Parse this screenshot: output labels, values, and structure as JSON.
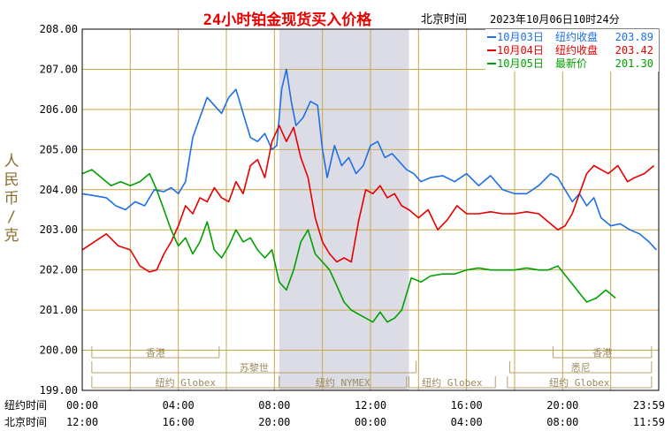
{
  "header": {
    "title": "24小时铂金现货买入价格",
    "timezone_label": "北京时间",
    "timestamp": "2023年10月06日10时24分"
  },
  "legend": [
    {
      "label": "10月03日",
      "sublabel": "纽约收盘",
      "value": "203.89",
      "color": "#1e6fe6"
    },
    {
      "label": "10月04日",
      "sublabel": "纽约收盘",
      "value": "203.42",
      "color": "#e60000"
    },
    {
      "label": "10月05日",
      "sublabel": "最新价",
      "value": "201.30",
      "color": "#00a000"
    }
  ],
  "axes": {
    "ylabel": "人民币/克",
    "row1_label": "纽约时间",
    "row2_label": "北京时间",
    "ny_ticks": [
      "00:00",
      "04:00",
      "08:00",
      "12:00",
      "16:00",
      "20:00",
      "23:59"
    ],
    "bj_ticks": [
      "12:00",
      "16:00",
      "20:00",
      "00:00",
      "04:00",
      "08:00",
      "11:59"
    ]
  },
  "sessions": {
    "top": [
      {
        "label": "香港",
        "start": 0.4,
        "end": 5.7
      },
      {
        "label": "香港",
        "start": 19.6,
        "end": 23.7
      }
    ],
    "mid": [
      {
        "label": "苏黎世",
        "start": 0.4,
        "end": 13.9
      },
      {
        "label": "悉尼",
        "start": 17.8,
        "end": 23.7
      }
    ],
    "bottom": [
      {
        "label": "纽约 Globex",
        "start": 0.4,
        "end": 8.2
      },
      {
        "label": "纽约 NYMEX",
        "start": 8.2,
        "end": 13.5
      },
      {
        "label": "纽约 Globex",
        "start": 13.6,
        "end": 17.2
      },
      {
        "label": "纽约 Globex",
        "start": 17.7,
        "end": 23.7
      }
    ]
  },
  "chart_data": {
    "type": "line",
    "title": "24小时铂金现货买入价格",
    "xlabel": "纽约时间 / 北京时间",
    "ylabel": "人民币/克",
    "xlim": [
      0,
      24
    ],
    "ylim": [
      199.0,
      208.0
    ],
    "yticks": [
      "208.00",
      "207.00",
      "206.00",
      "205.00",
      "204.00",
      "203.00",
      "202.00",
      "201.00",
      "200.00",
      "199.00"
    ],
    "highlight_band": {
      "from": 8.2,
      "to": 13.6
    },
    "grid": true,
    "legend_position": "top-right",
    "series": [
      {
        "name": "10月03日",
        "color": "#1e6fe6",
        "x": [
          0,
          0.5,
          1.0,
          1.4,
          1.8,
          2.2,
          2.6,
          3.0,
          3.4,
          3.7,
          4.0,
          4.3,
          4.6,
          4.9,
          5.2,
          5.5,
          5.8,
          6.1,
          6.4,
          6.7,
          7.0,
          7.3,
          7.6,
          7.9,
          8.1,
          8.3,
          8.5,
          8.7,
          8.9,
          9.2,
          9.5,
          9.8,
          10.0,
          10.2,
          10.5,
          10.8,
          11.1,
          11.4,
          11.7,
          12.0,
          12.3,
          12.6,
          12.9,
          13.2,
          13.5,
          13.8,
          14.1,
          14.5,
          15.0,
          15.5,
          16.0,
          16.5,
          17.0,
          17.5,
          18.0,
          18.5,
          19.0,
          19.5,
          19.8,
          20.1,
          20.4,
          20.7,
          21.0,
          21.3,
          21.6,
          22.0,
          22.4,
          22.8,
          23.2,
          23.6,
          23.9
        ],
        "values": [
          203.9,
          203.85,
          203.8,
          203.6,
          203.5,
          203.7,
          203.6,
          204.0,
          203.95,
          204.05,
          203.9,
          204.2,
          205.3,
          205.8,
          206.3,
          206.1,
          205.9,
          206.3,
          206.5,
          205.9,
          205.3,
          205.2,
          205.4,
          205.0,
          205.1,
          206.5,
          207.0,
          206.2,
          205.6,
          205.8,
          206.2,
          206.1,
          205.0,
          204.3,
          205.1,
          204.6,
          204.8,
          204.4,
          204.6,
          205.1,
          205.2,
          204.8,
          204.9,
          204.7,
          204.5,
          204.4,
          204.2,
          204.3,
          204.35,
          204.2,
          204.4,
          204.1,
          204.35,
          204.0,
          203.9,
          203.9,
          204.1,
          204.4,
          204.3,
          204.0,
          203.7,
          203.9,
          203.6,
          203.8,
          203.3,
          203.1,
          203.15,
          203.0,
          202.9,
          202.7,
          202.5
        ]
      },
      {
        "name": "10月04日",
        "color": "#e60000",
        "x": [
          0,
          0.5,
          1.0,
          1.5,
          2.0,
          2.4,
          2.8,
          3.1,
          3.4,
          3.7,
          4.0,
          4.3,
          4.6,
          4.9,
          5.2,
          5.5,
          5.8,
          6.1,
          6.4,
          6.7,
          7.0,
          7.3,
          7.6,
          7.9,
          8.2,
          8.5,
          8.8,
          9.1,
          9.4,
          9.7,
          10.0,
          10.3,
          10.6,
          10.9,
          11.2,
          11.5,
          11.8,
          12.1,
          12.4,
          12.7,
          13.0,
          13.3,
          13.6,
          14.0,
          14.4,
          14.8,
          15.2,
          15.6,
          16.0,
          16.5,
          17.0,
          17.5,
          18.0,
          18.5,
          19.0,
          19.4,
          19.8,
          20.1,
          20.4,
          20.7,
          21.0,
          21.3,
          21.6,
          21.9,
          22.3,
          22.7,
          23.0,
          23.4,
          23.8
        ],
        "values": [
          202.5,
          202.7,
          202.9,
          202.6,
          202.5,
          202.1,
          201.95,
          202.0,
          202.4,
          202.7,
          203.1,
          203.6,
          203.4,
          203.8,
          203.7,
          204.05,
          203.8,
          203.7,
          204.2,
          203.9,
          204.6,
          204.75,
          204.3,
          205.2,
          205.6,
          205.2,
          205.55,
          204.8,
          204.3,
          203.3,
          202.7,
          202.4,
          202.2,
          202.3,
          202.2,
          203.2,
          204.0,
          203.9,
          204.1,
          203.8,
          203.9,
          203.6,
          203.5,
          203.3,
          203.5,
          203.0,
          203.25,
          203.6,
          203.4,
          203.4,
          203.45,
          203.4,
          203.4,
          203.45,
          203.4,
          203.2,
          203.0,
          203.1,
          203.4,
          203.9,
          204.4,
          204.6,
          204.5,
          204.4,
          204.6,
          204.2,
          204.3,
          204.4,
          204.6
        ]
      },
      {
        "name": "10月05日",
        "color": "#00a000",
        "x": [
          0,
          0.4,
          0.8,
          1.2,
          1.6,
          2.0,
          2.4,
          2.8,
          3.1,
          3.4,
          3.7,
          4.0,
          4.3,
          4.6,
          4.9,
          5.2,
          5.5,
          5.8,
          6.1,
          6.4,
          6.7,
          7.0,
          7.3,
          7.6,
          7.9,
          8.2,
          8.5,
          8.8,
          9.1,
          9.4,
          9.7,
          10.0,
          10.3,
          10.6,
          10.9,
          11.2,
          11.5,
          11.8,
          12.1,
          12.4,
          12.7,
          13.0,
          13.3,
          13.7,
          14.1,
          14.5,
          15.0,
          15.5,
          16.0,
          16.5,
          17.0,
          17.5,
          18.0,
          18.5,
          19.0,
          19.4,
          19.8,
          20.2,
          20.6,
          21.0,
          21.4,
          21.8,
          22.2
        ],
        "values": [
          204.4,
          204.5,
          204.3,
          204.1,
          204.2,
          204.1,
          204.2,
          204.4,
          204.0,
          203.5,
          203.0,
          202.6,
          202.8,
          202.4,
          202.7,
          203.2,
          202.5,
          202.3,
          202.6,
          203.0,
          202.7,
          202.8,
          202.5,
          202.3,
          202.5,
          201.7,
          201.5,
          202.0,
          202.7,
          203.0,
          202.4,
          202.2,
          202.0,
          201.6,
          201.2,
          201.0,
          200.9,
          200.8,
          200.7,
          200.95,
          200.7,
          200.8,
          201.0,
          201.8,
          201.7,
          201.85,
          201.9,
          201.9,
          202.0,
          202.05,
          202.0,
          202.0,
          202.0,
          202.05,
          202.0,
          202.0,
          202.1,
          201.8,
          201.5,
          201.2,
          201.3,
          201.5,
          201.3
        ]
      }
    ]
  }
}
